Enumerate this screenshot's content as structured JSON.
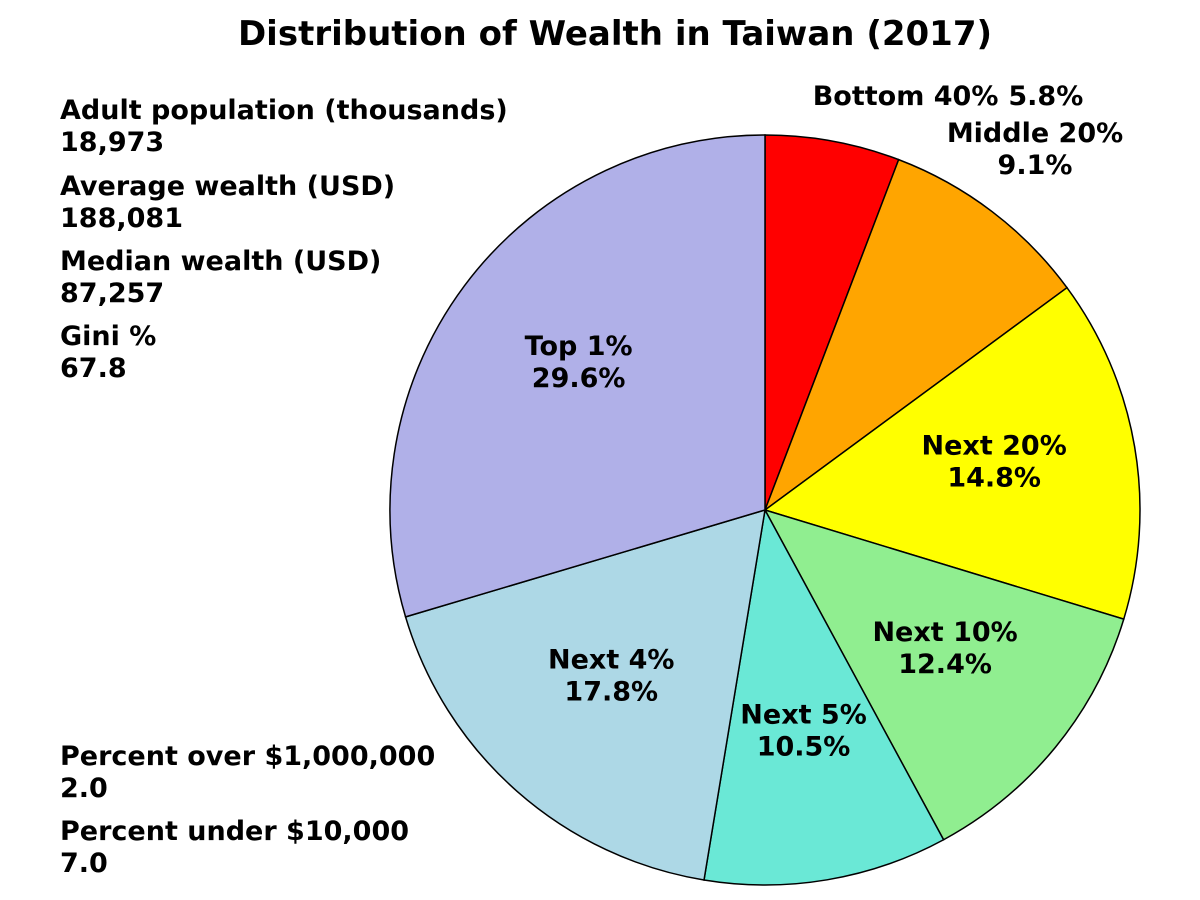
{
  "chart_data": {
    "type": "pie",
    "title": "Distribution of Wealth in Taiwan (2017)",
    "categories": [
      "Bottom 40%",
      "Middle 20%",
      "Next 20%",
      "Next 10%",
      "Next 5%",
      "Next 4%",
      "Top 1%"
    ],
    "values": [
      5.8,
      9.1,
      14.8,
      12.4,
      10.5,
      17.8,
      29.6
    ],
    "value_labels": [
      "5.8%",
      "9.1%",
      "14.8%",
      "12.4%",
      "10.5%",
      "17.8%",
      "29.6%"
    ],
    "colors": [
      "#ff0000",
      "#ffa500",
      "#ffff00",
      "#90ee90",
      "#6ae8d6",
      "#add8e6",
      "#b0b0e8"
    ],
    "annotations": [
      {
        "label": "Adult population (thousands)",
        "value": "18,973"
      },
      {
        "label": "Average wealth (USD)",
        "value": "188,081"
      },
      {
        "label": "Median wealth (USD)",
        "value": "87,257"
      },
      {
        "label": "Gini %",
        "value": "67.8"
      },
      {
        "label": "Percent over $1,000,000",
        "value": "2.0"
      },
      {
        "label": "Percent under $10,000",
        "value": "7.0"
      }
    ]
  }
}
